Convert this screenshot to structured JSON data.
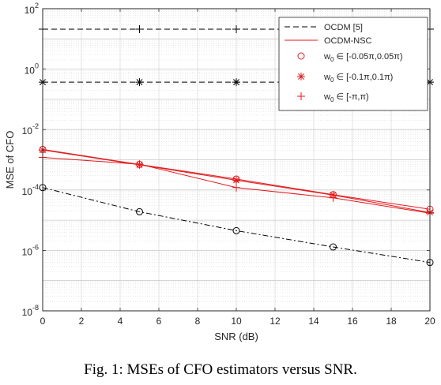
{
  "chart_data": {
    "type": "line",
    "xlabel": "SNR (dB)",
    "ylabel": "MSE of CFO",
    "x_ticks": [
      0,
      2,
      4,
      6,
      8,
      10,
      12,
      14,
      16,
      18,
      20
    ],
    "xlim": [
      0,
      20
    ],
    "y_scale": "log",
    "ylim": [
      1e-08,
      100
    ],
    "y_tick_labels": [
      {
        "base": "10",
        "exp": "2",
        "value": 100
      },
      {
        "base": "10",
        "exp": "0",
        "value": 1
      },
      {
        "base": "10",
        "exp": "-2",
        "value": 0.01
      },
      {
        "base": "10",
        "exp": "-4",
        "value": 0.0001
      },
      {
        "base": "10",
        "exp": "-6",
        "value": 1e-06
      },
      {
        "base": "10",
        "exp": "-8",
        "value": 1e-08
      }
    ],
    "grid": true,
    "legend_position": "top-right",
    "legend": [
      {
        "label": "OCDM [5]",
        "style": "black-dashed-line"
      },
      {
        "label": "OCDM-NSC",
        "style": "red-solid-line"
      },
      {
        "label_main": "w",
        "label_sub": "0",
        "label_rest": " ∈ [-0.05π,0.05π)",
        "marker": "circle"
      },
      {
        "label_main": "w",
        "label_sub": "0",
        "label_rest": " ∈ [-0.1π,0.1π)",
        "marker": "star"
      },
      {
        "label_main": "w",
        "label_sub": "0",
        "label_rest": " ∈ [-π,π)",
        "marker": "plus"
      }
    ],
    "series": [
      {
        "method": "OCDM [5]",
        "range": "[-0.05π,0.05π)",
        "color": "#000000",
        "dash": "dashdot",
        "marker": "circle",
        "x": [
          0,
          5,
          10,
          15,
          20
        ],
        "y": [
          0.00012,
          1.9e-05,
          4.5e-06,
          1.3e-06,
          4e-07
        ]
      },
      {
        "method": "OCDM [5]",
        "range": "[-0.1π,0.1π)",
        "color": "#000000",
        "dash": "dashed",
        "marker": "star",
        "x": [
          0,
          5,
          10,
          15,
          20
        ],
        "y": [
          0.37,
          0.37,
          0.37,
          0.37,
          0.37
        ]
      },
      {
        "method": "OCDM [5]",
        "range": "[-π,π)",
        "color": "#000000",
        "dash": "dashed",
        "marker": "plus",
        "x": [
          0,
          5,
          10,
          15,
          20
        ],
        "y": [
          21,
          21,
          21,
          21,
          21
        ]
      },
      {
        "method": "OCDM-NSC",
        "range": "[-0.05π,0.05π)",
        "color": "#e31a1c",
        "dash": "solid",
        "marker": "circle",
        "x": [
          0,
          5,
          10,
          15,
          20
        ],
        "y": [
          0.0022,
          0.0007,
          0.00023,
          7e-05,
          2.3e-05
        ]
      },
      {
        "method": "OCDM-NSC",
        "range": "[-0.1π,0.1π)",
        "color": "#e31a1c",
        "dash": "solid",
        "marker": "star",
        "x": [
          0,
          5,
          10,
          15,
          20
        ],
        "y": [
          0.0021,
          0.00068,
          0.00021,
          6.8e-05,
          1.8e-05
        ]
      },
      {
        "method": "OCDM-NSC",
        "range": "[-π,π)",
        "color": "#e31a1c",
        "dash": "solid",
        "marker": "plus",
        "x": [
          0,
          5,
          10,
          15,
          20
        ],
        "y": [
          0.0012,
          0.00071,
          0.00012,
          5.5e-05,
          1.7e-05
        ]
      }
    ]
  },
  "caption": "Fig. 1: MSEs of CFO estimators versus SNR."
}
